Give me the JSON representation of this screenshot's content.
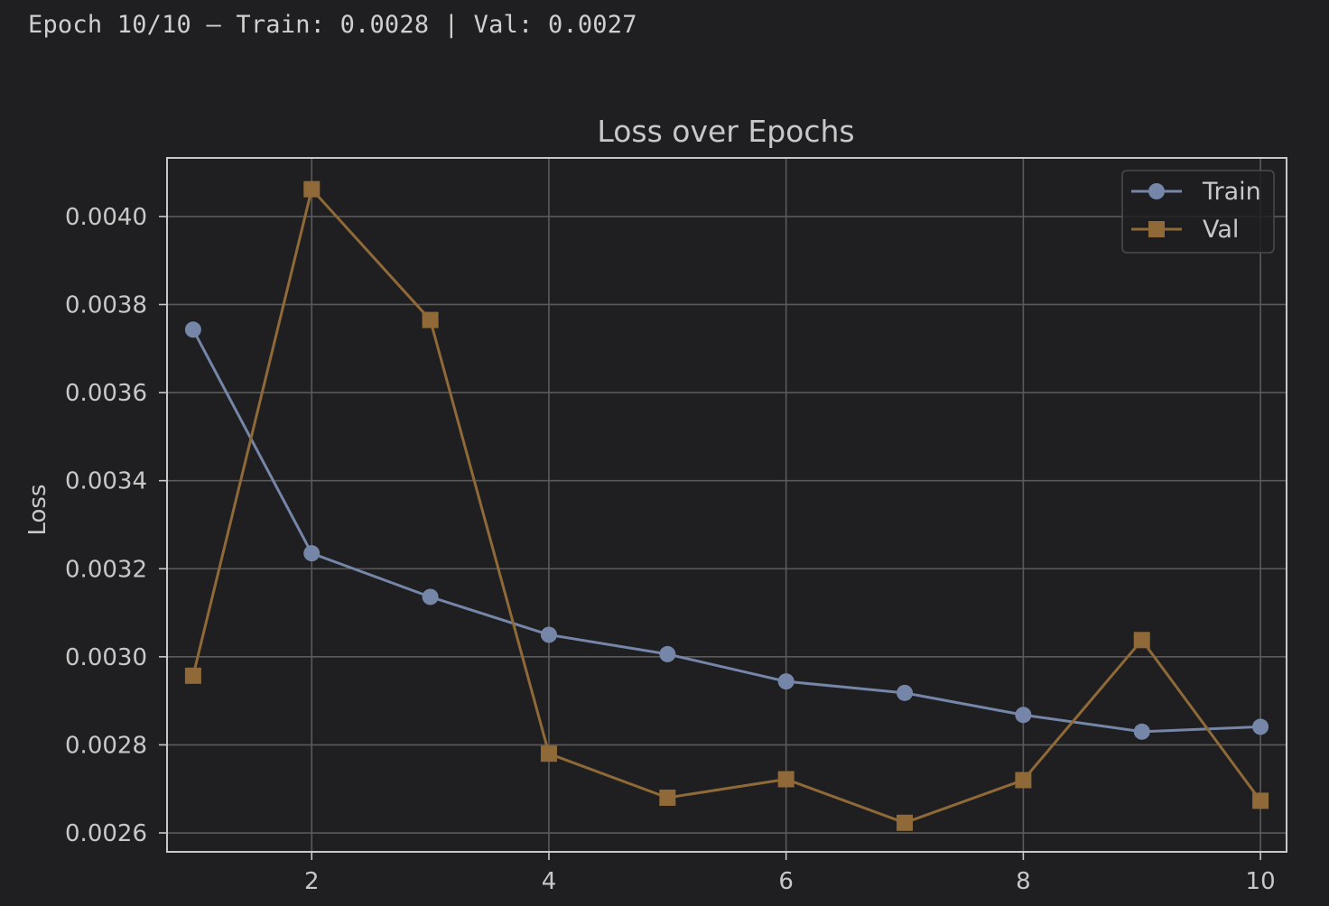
{
  "console": {
    "output_line": "Epoch 10/10 — Train: 0.0028 | Val: 0.0027"
  },
  "colors": {
    "background": "#1f1f21",
    "train": "#7586a8",
    "val": "#8f6a38",
    "grid": "#5a5a5a",
    "axis": "#c8c8c8",
    "text": "#c8c8c8"
  },
  "chart_data": {
    "type": "line",
    "title": "Loss over Epochs",
    "xlabel": "",
    "ylabel": "Loss",
    "x": [
      1,
      2,
      3,
      4,
      5,
      6,
      7,
      8,
      9,
      10
    ],
    "xlim": [
      0.78,
      10.22
    ],
    "ylim": [
      0.002557,
      0.004133
    ],
    "xticks": [
      2,
      4,
      6,
      8,
      10
    ],
    "yticks": [
      0.0026,
      0.0028,
      0.003,
      0.0032,
      0.0034,
      0.0036,
      0.0038,
      0.004
    ],
    "ytick_labels": [
      "0.0026",
      "0.0028",
      "0.0030",
      "0.0032",
      "0.0034",
      "0.0036",
      "0.0038",
      "0.0040"
    ],
    "grid": true,
    "legend_position": "top-right",
    "series": [
      {
        "name": "Train",
        "marker": "circle",
        "values": [
          0.003743,
          0.003235,
          0.003136,
          0.00305,
          0.003006,
          0.002944,
          0.002918,
          0.002868,
          0.00283,
          0.002841
        ]
      },
      {
        "name": "Val",
        "marker": "square",
        "values": [
          0.002957,
          0.004062,
          0.003765,
          0.00278,
          0.00268,
          0.002722,
          0.002623,
          0.00272,
          0.003038,
          0.002673
        ]
      }
    ]
  }
}
